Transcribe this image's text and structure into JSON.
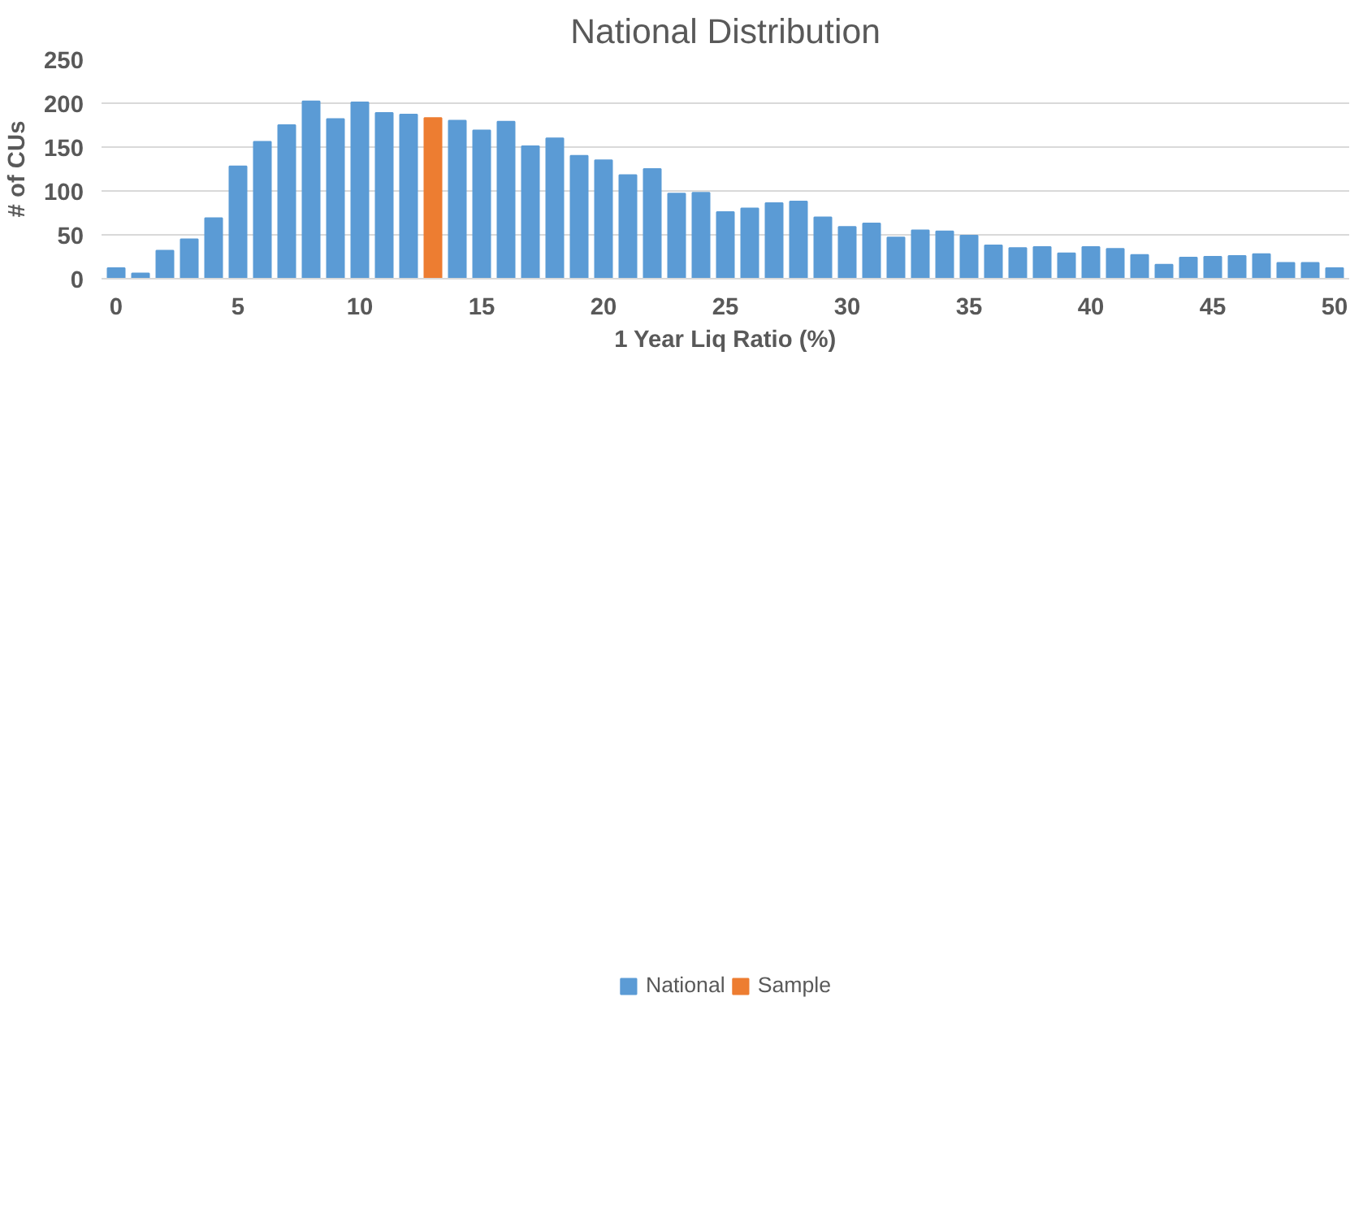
{
  "chart_data": {
    "type": "bar",
    "title": "National Distribution",
    "xlabel": "1 Year Liq Ratio (%)",
    "ylabel": "# of CUs",
    "x": [
      0,
      1,
      2,
      3,
      4,
      5,
      6,
      7,
      8,
      9,
      10,
      11,
      12,
      13,
      14,
      15,
      16,
      17,
      18,
      19,
      20,
      21,
      22,
      23,
      24,
      25,
      26,
      27,
      28,
      29,
      30,
      31,
      32,
      33,
      34,
      35,
      36,
      37,
      38,
      39,
      40,
      41,
      42,
      43,
      44,
      45,
      46,
      47,
      48,
      49,
      50
    ],
    "series": [
      {
        "name": "National",
        "color": "#5b9bd5",
        "values": [
          12,
          6,
          32,
          45,
          69,
          128,
          156,
          175,
          202,
          182,
          201,
          189,
          187,
          null,
          180,
          169,
          179,
          151,
          160,
          140,
          135,
          118,
          125,
          97,
          98,
          76,
          80,
          86,
          88,
          70,
          59,
          63,
          47,
          55,
          54,
          49,
          38,
          35,
          36,
          29,
          36,
          34,
          27,
          16,
          24,
          25,
          26,
          28,
          18,
          18,
          12
        ]
      },
      {
        "name": "Sample",
        "color": "#ed7d31",
        "values": [
          null,
          null,
          null,
          null,
          null,
          null,
          null,
          null,
          null,
          null,
          null,
          null,
          null,
          183,
          null,
          null,
          null,
          null,
          null,
          null,
          null,
          null,
          null,
          null,
          null,
          null,
          null,
          null,
          null,
          null,
          null,
          null,
          null,
          null,
          null,
          null,
          null,
          null,
          null,
          null,
          null,
          null,
          null,
          null,
          null,
          null,
          null,
          null,
          null,
          null,
          null
        ]
      }
    ],
    "xlim": [
      -0.6,
      50.6
    ],
    "xticks": [
      0,
      5,
      10,
      15,
      20,
      25,
      30,
      35,
      40,
      45,
      50
    ],
    "ylim": [
      0,
      250
    ],
    "yticks": [
      0,
      50,
      100,
      150,
      200,
      250
    ],
    "grid": "y",
    "legend": "bottom"
  }
}
